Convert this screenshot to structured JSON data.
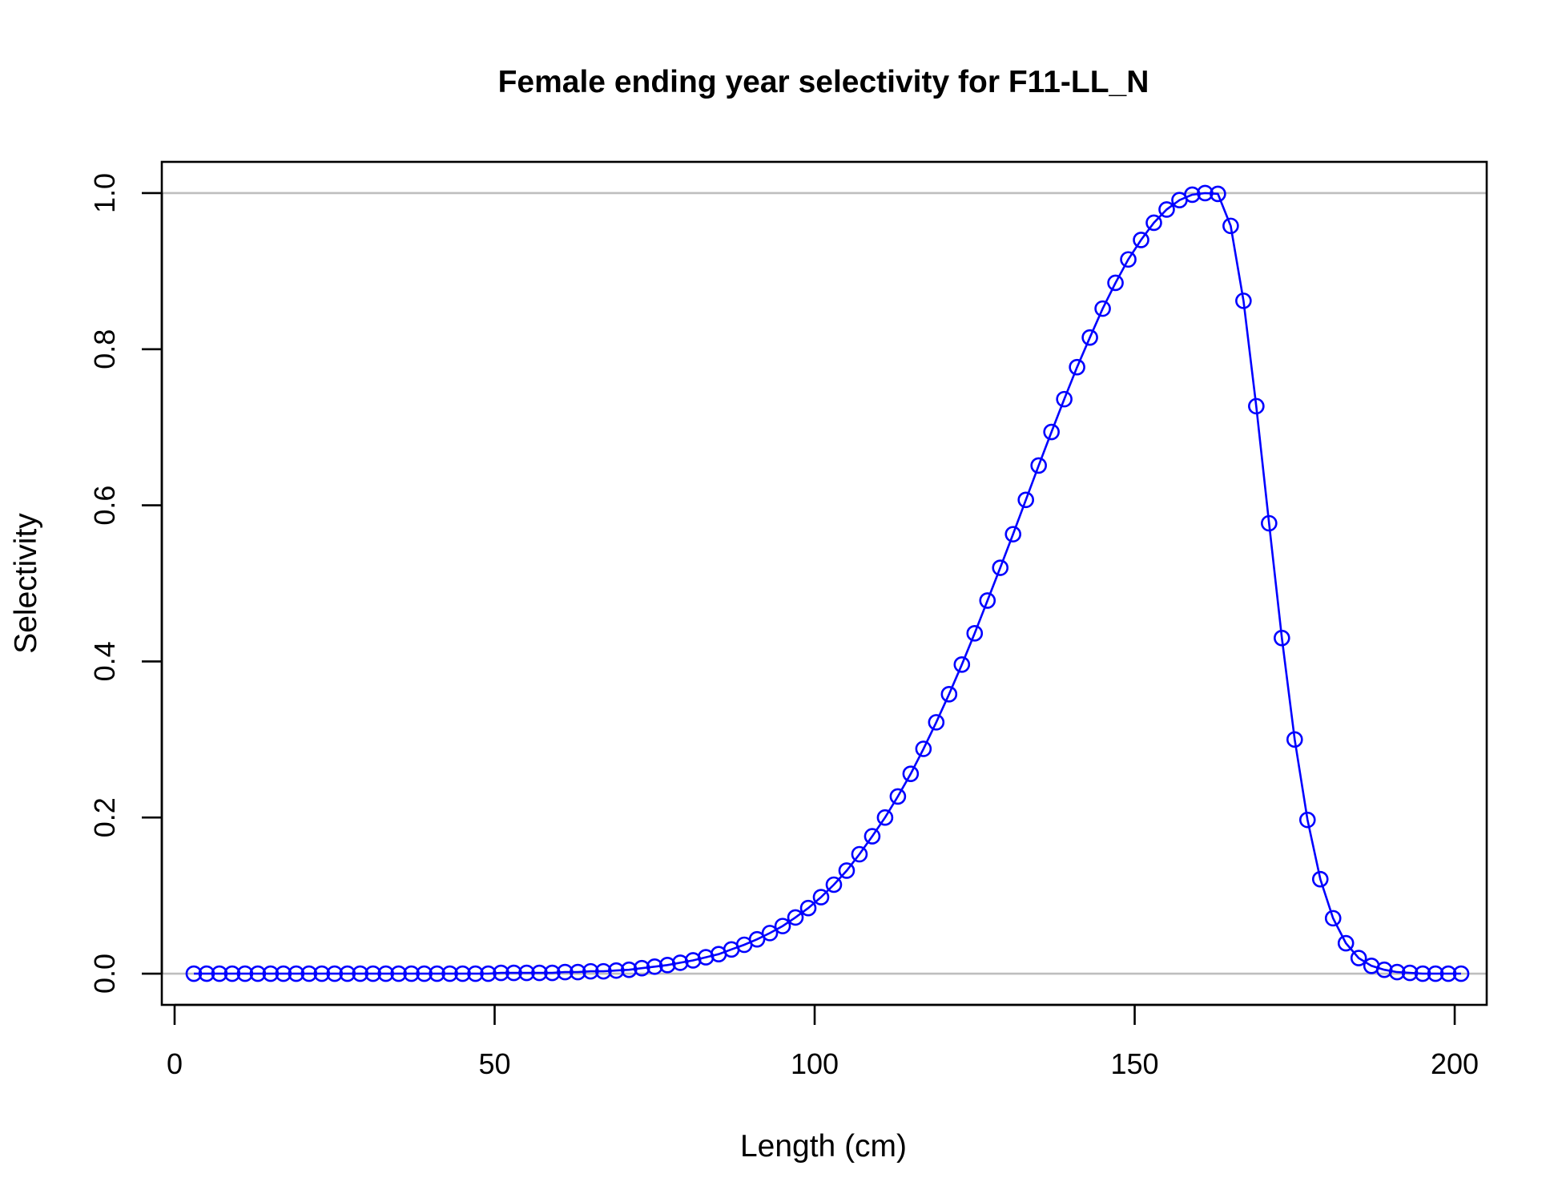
{
  "chart_data": {
    "type": "line",
    "title": "Female ending year selectivity for F11-LL_N",
    "xlabel": "Length (cm)",
    "ylabel": "Selectivity",
    "xlim": [
      -2,
      205
    ],
    "ylim": [
      -0.04,
      1.04
    ],
    "x_ticks": [
      "0",
      "50",
      "100",
      "150",
      "200"
    ],
    "y_ticks": [
      "0.0",
      "0.2",
      "0.4",
      "0.6",
      "0.8",
      "1.0"
    ],
    "reference_lines": [
      0,
      1
    ],
    "reference_line_color": "#bebebe",
    "series_color": "#0000ff",
    "markers": "open-circle",
    "grid": false,
    "legend": "none",
    "series": [
      {
        "x": [
          3,
          5,
          7,
          9,
          11,
          13,
          15,
          17,
          19,
          21,
          23,
          25,
          27,
          29,
          31,
          33,
          35,
          37,
          39,
          41,
          43,
          45,
          47,
          49,
          51,
          53,
          55,
          57,
          59,
          61,
          63,
          65,
          67,
          69,
          71,
          73,
          75,
          77,
          79,
          81,
          83,
          85,
          87,
          89,
          91,
          93,
          95,
          97,
          99,
          101,
          103,
          105,
          107,
          109,
          111,
          113,
          115,
          117,
          119,
          121,
          123,
          125,
          127,
          129,
          131,
          133,
          135,
          137,
          139,
          141,
          143,
          145,
          147,
          149,
          151,
          153,
          155,
          157,
          159,
          161,
          163,
          165,
          167,
          169,
          171,
          173,
          175,
          177,
          179,
          181,
          183,
          185,
          187,
          189,
          191,
          193,
          195,
          197,
          199,
          201
        ],
        "y": [
          0,
          0,
          0,
          0,
          0,
          0,
          0,
          0,
          0,
          0,
          0,
          0,
          0,
          0,
          0,
          0,
          0,
          0,
          0,
          0,
          0,
          0,
          0,
          0,
          0.001,
          0.001,
          0.001,
          0.001,
          0.001,
          0.002,
          0.002,
          0.003,
          0.003,
          0.004,
          0.005,
          0.007,
          0.009,
          0.011,
          0.014,
          0.017,
          0.021,
          0.025,
          0.031,
          0.037,
          0.044,
          0.052,
          0.061,
          0.072,
          0.084,
          0.098,
          0.114,
          0.132,
          0.153,
          0.176,
          0.2,
          0.227,
          0.256,
          0.288,
          0.322,
          0.358,
          0.396,
          0.436,
          0.478,
          0.52,
          0.563,
          0.607,
          0.651,
          0.694,
          0.736,
          0.777,
          0.815,
          0.852,
          0.885,
          0.915,
          0.94,
          0.962,
          0.979,
          0.991,
          0.998,
          1.0,
          0.999,
          0.958,
          0.862,
          0.727,
          0.577,
          0.43,
          0.3,
          0.197,
          0.121,
          0.071,
          0.039,
          0.02,
          0.01,
          0.005,
          0.002,
          0.001,
          0,
          0,
          0,
          0
        ]
      }
    ]
  }
}
